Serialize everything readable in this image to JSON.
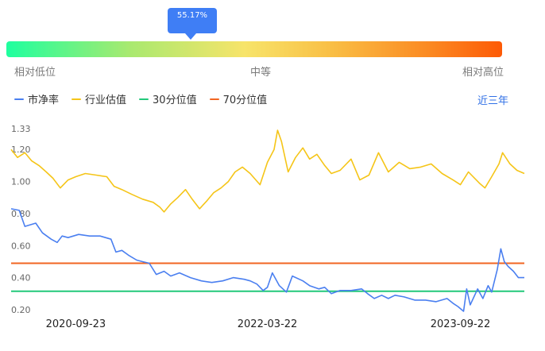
{
  "percentile": {
    "label": "55.17%",
    "value_fraction": 0.5517,
    "scale_labels": [
      "相对低位",
      "中等",
      "相对高位"
    ]
  },
  "legend": [
    {
      "name": "市净率",
      "color": "#4a7ff0"
    },
    {
      "name": "行业估值",
      "color": "#f5c518"
    },
    {
      "name": "30分位值",
      "color": "#22c87a"
    },
    {
      "name": "70分位值",
      "color": "#f26522"
    }
  ],
  "range_link": "近三年",
  "chart_data": {
    "type": "line",
    "title": "",
    "xlabel": "",
    "ylabel": "",
    "x_tick_labels": [
      "2020-09-23",
      "2022-03-22",
      "2023-09-22"
    ],
    "y_tick_labels": [
      "1.33",
      "1.20",
      "1.00",
      "0.80",
      "0.60",
      "0.40",
      "0.20"
    ],
    "ylim": [
      0.2,
      1.33
    ],
    "x_domain": [
      "2020-03-23",
      "2024-03-22"
    ],
    "grid": false,
    "series": [
      {
        "name": "市净率",
        "color": "#4a7ff0",
        "points": [
          [
            "2020-03-23",
            0.83
          ],
          [
            "2020-04-15",
            0.82
          ],
          [
            "2020-05-01",
            0.72
          ],
          [
            "2020-06-01",
            0.74
          ],
          [
            "2020-06-20",
            0.68
          ],
          [
            "2020-07-15",
            0.64
          ],
          [
            "2020-08-01",
            0.62
          ],
          [
            "2020-08-15",
            0.66
          ],
          [
            "2020-09-01",
            0.65
          ],
          [
            "2020-10-01",
            0.67
          ],
          [
            "2020-11-01",
            0.66
          ],
          [
            "2020-12-01",
            0.66
          ],
          [
            "2021-01-01",
            0.64
          ],
          [
            "2021-01-15",
            0.56
          ],
          [
            "2021-02-01",
            0.57
          ],
          [
            "2021-02-20",
            0.54
          ],
          [
            "2021-03-15",
            0.51
          ],
          [
            "2021-04-01",
            0.5
          ],
          [
            "2021-04-20",
            0.49
          ],
          [
            "2021-05-10",
            0.42
          ],
          [
            "2021-06-01",
            0.44
          ],
          [
            "2021-06-20",
            0.41
          ],
          [
            "2021-07-15",
            0.43
          ],
          [
            "2021-08-15",
            0.4
          ],
          [
            "2021-09-15",
            0.38
          ],
          [
            "2021-10-15",
            0.37
          ],
          [
            "2021-11-15",
            0.38
          ],
          [
            "2021-12-15",
            0.4
          ],
          [
            "2022-01-15",
            0.39
          ],
          [
            "2022-02-01",
            0.38
          ],
          [
            "2022-02-20",
            0.36
          ],
          [
            "2022-03-10",
            0.32
          ],
          [
            "2022-03-22",
            0.34
          ],
          [
            "2022-04-05",
            0.43
          ],
          [
            "2022-04-25",
            0.35
          ],
          [
            "2022-05-15",
            0.31
          ],
          [
            "2022-06-01",
            0.41
          ],
          [
            "2022-07-01",
            0.38
          ],
          [
            "2022-07-20",
            0.35
          ],
          [
            "2022-08-15",
            0.33
          ],
          [
            "2022-09-01",
            0.34
          ],
          [
            "2022-09-20",
            0.3
          ],
          [
            "2022-10-15",
            0.32
          ],
          [
            "2022-11-15",
            0.32
          ],
          [
            "2022-12-15",
            0.33
          ],
          [
            "2023-01-01",
            0.3
          ],
          [
            "2023-01-20",
            0.27
          ],
          [
            "2023-02-10",
            0.29
          ],
          [
            "2023-03-01",
            0.27
          ],
          [
            "2023-03-20",
            0.29
          ],
          [
            "2023-04-15",
            0.28
          ],
          [
            "2023-05-15",
            0.26
          ],
          [
            "2023-06-15",
            0.26
          ],
          [
            "2023-07-15",
            0.25
          ],
          [
            "2023-08-15",
            0.27
          ],
          [
            "2023-09-01",
            0.24
          ],
          [
            "2023-09-15",
            0.22
          ],
          [
            "2023-10-01",
            0.19
          ],
          [
            "2023-10-10",
            0.33
          ],
          [
            "2023-10-20",
            0.23
          ],
          [
            "2023-11-10",
            0.33
          ],
          [
            "2023-11-25",
            0.27
          ],
          [
            "2023-12-10",
            0.35
          ],
          [
            "2023-12-20",
            0.31
          ],
          [
            "2024-01-05",
            0.45
          ],
          [
            "2024-01-15",
            0.58
          ],
          [
            "2024-01-25",
            0.5
          ],
          [
            "2024-02-05",
            0.47
          ],
          [
            "2024-02-20",
            0.44
          ],
          [
            "2024-03-05",
            0.4
          ],
          [
            "2024-03-22",
            0.4
          ]
        ]
      },
      {
        "name": "行业估值",
        "color": "#f5c518",
        "points": [
          [
            "2020-03-23",
            1.2
          ],
          [
            "2020-04-10",
            1.15
          ],
          [
            "2020-05-01",
            1.18
          ],
          [
            "2020-05-20",
            1.13
          ],
          [
            "2020-06-10",
            1.1
          ],
          [
            "2020-07-01",
            1.06
          ],
          [
            "2020-07-20",
            1.02
          ],
          [
            "2020-08-10",
            0.96
          ],
          [
            "2020-09-01",
            1.01
          ],
          [
            "2020-09-23",
            1.03
          ],
          [
            "2020-10-20",
            1.05
          ],
          [
            "2020-11-20",
            1.04
          ],
          [
            "2020-12-20",
            1.03
          ],
          [
            "2021-01-10",
            0.97
          ],
          [
            "2021-02-01",
            0.95
          ],
          [
            "2021-03-01",
            0.92
          ],
          [
            "2021-04-01",
            0.89
          ],
          [
            "2021-05-01",
            0.87
          ],
          [
            "2021-05-20",
            0.84
          ],
          [
            "2021-06-01",
            0.81
          ],
          [
            "2021-06-20",
            0.86
          ],
          [
            "2021-07-10",
            0.9
          ],
          [
            "2021-08-01",
            0.95
          ],
          [
            "2021-08-20",
            0.89
          ],
          [
            "2021-09-10",
            0.83
          ],
          [
            "2021-10-01",
            0.88
          ],
          [
            "2021-10-20",
            0.93
          ],
          [
            "2021-11-10",
            0.96
          ],
          [
            "2021-12-01",
            1.0
          ],
          [
            "2021-12-20",
            1.06
          ],
          [
            "2022-01-10",
            1.09
          ],
          [
            "2022-02-01",
            1.05
          ],
          [
            "2022-03-01",
            0.98
          ],
          [
            "2022-03-22",
            1.12
          ],
          [
            "2022-04-10",
            1.2
          ],
          [
            "2022-04-20",
            1.32
          ],
          [
            "2022-05-01",
            1.25
          ],
          [
            "2022-05-20",
            1.06
          ],
          [
            "2022-06-10",
            1.15
          ],
          [
            "2022-07-01",
            1.21
          ],
          [
            "2022-07-20",
            1.14
          ],
          [
            "2022-08-10",
            1.17
          ],
          [
            "2022-09-01",
            1.1
          ],
          [
            "2022-09-20",
            1.05
          ],
          [
            "2022-10-15",
            1.07
          ],
          [
            "2022-11-15",
            1.14
          ],
          [
            "2022-12-10",
            1.01
          ],
          [
            "2023-01-05",
            1.04
          ],
          [
            "2023-02-01",
            1.18
          ],
          [
            "2023-03-01",
            1.06
          ],
          [
            "2023-04-01",
            1.12
          ],
          [
            "2023-05-01",
            1.08
          ],
          [
            "2023-06-01",
            1.09
          ],
          [
            "2023-07-01",
            1.11
          ],
          [
            "2023-08-01",
            1.05
          ],
          [
            "2023-09-01",
            1.01
          ],
          [
            "2023-09-22",
            0.98
          ],
          [
            "2023-10-15",
            1.06
          ],
          [
            "2023-11-15",
            0.99
          ],
          [
            "2023-12-01",
            0.96
          ],
          [
            "2023-12-20",
            1.03
          ],
          [
            "2024-01-10",
            1.11
          ],
          [
            "2024-01-20",
            1.18
          ],
          [
            "2024-02-10",
            1.11
          ],
          [
            "2024-03-01",
            1.07
          ],
          [
            "2024-03-22",
            1.05
          ]
        ]
      },
      {
        "name": "30分位值",
        "color": "#22c87a",
        "points": [
          [
            "2020-03-23",
            0.315
          ],
          [
            "2024-03-22",
            0.315
          ]
        ]
      },
      {
        "name": "70分位值",
        "color": "#f26522",
        "points": [
          [
            "2020-03-23",
            0.49
          ],
          [
            "2024-03-22",
            0.49
          ]
        ]
      }
    ]
  }
}
